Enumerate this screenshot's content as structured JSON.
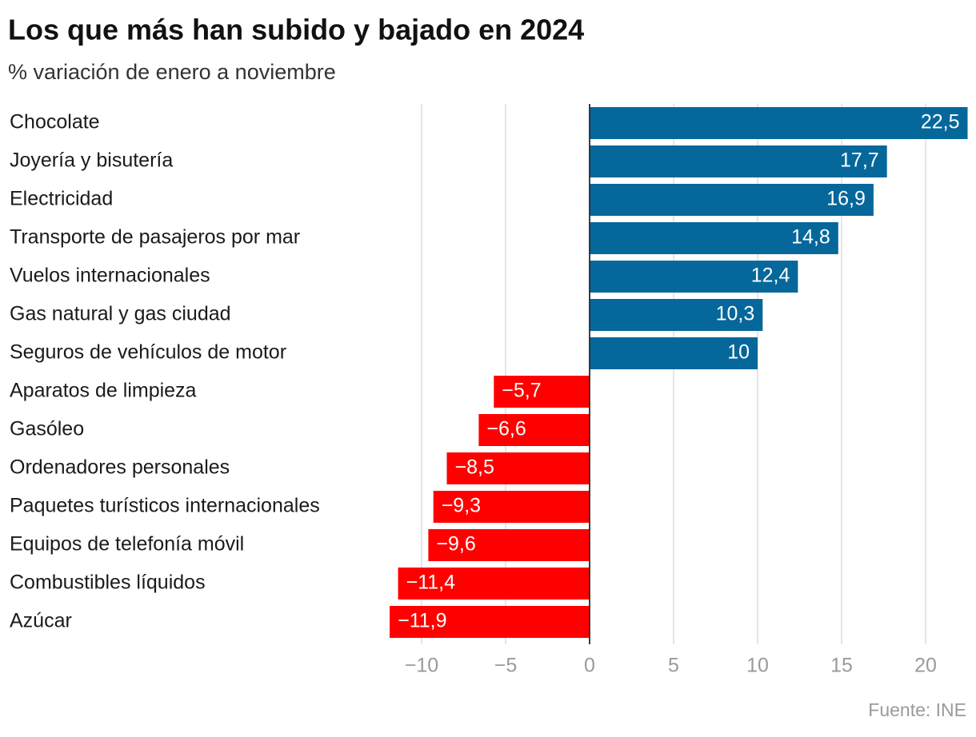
{
  "chart_data": {
    "type": "bar",
    "orientation": "horizontal",
    "title": "Los que más han subido y bajado en 2024",
    "subtitle": "% variación de enero a noviembre",
    "source": "Fuente: INE",
    "categories": [
      "Chocolate",
      "Joyería y bisutería",
      "Electricidad",
      "Transporte de pasajeros por mar",
      "Vuelos internacionales",
      "Gas natural y gas ciudad",
      "Seguros de vehículos de motor",
      "Aparatos de limpieza",
      "Gasóleo",
      "Ordenadores personales",
      "Paquetes turísticos internacionales",
      "Equipos de telefonía móvil",
      "Combustibles líquidos",
      "Azúcar"
    ],
    "values": [
      22.5,
      17.7,
      16.9,
      14.8,
      12.4,
      10.3,
      10,
      -5.7,
      -6.6,
      -8.5,
      -9.3,
      -9.6,
      -11.4,
      -11.9
    ],
    "value_labels": [
      "22,5",
      "17,7",
      "16,9",
      "14,8",
      "12,4",
      "10,3",
      "10",
      "−5,7",
      "−6,6",
      "−8,5",
      "−9,3",
      "−9,6",
      "−11,4",
      "−11,9"
    ],
    "colors": [
      "#06679b",
      "#06679b",
      "#06679b",
      "#06679b",
      "#06679b",
      "#06679b",
      "#06679b",
      "#ff0000",
      "#ff0000",
      "#ff0000",
      "#ff0000",
      "#ff0000",
      "#ff0000",
      "#ff0000"
    ],
    "xlim": [
      -12,
      22.5
    ],
    "xticks": [
      {
        "value": -10,
        "label": "−10"
      },
      {
        "value": -5,
        "label": "−5"
      },
      0,
      5,
      10,
      15,
      20
    ],
    "grid": true
  }
}
